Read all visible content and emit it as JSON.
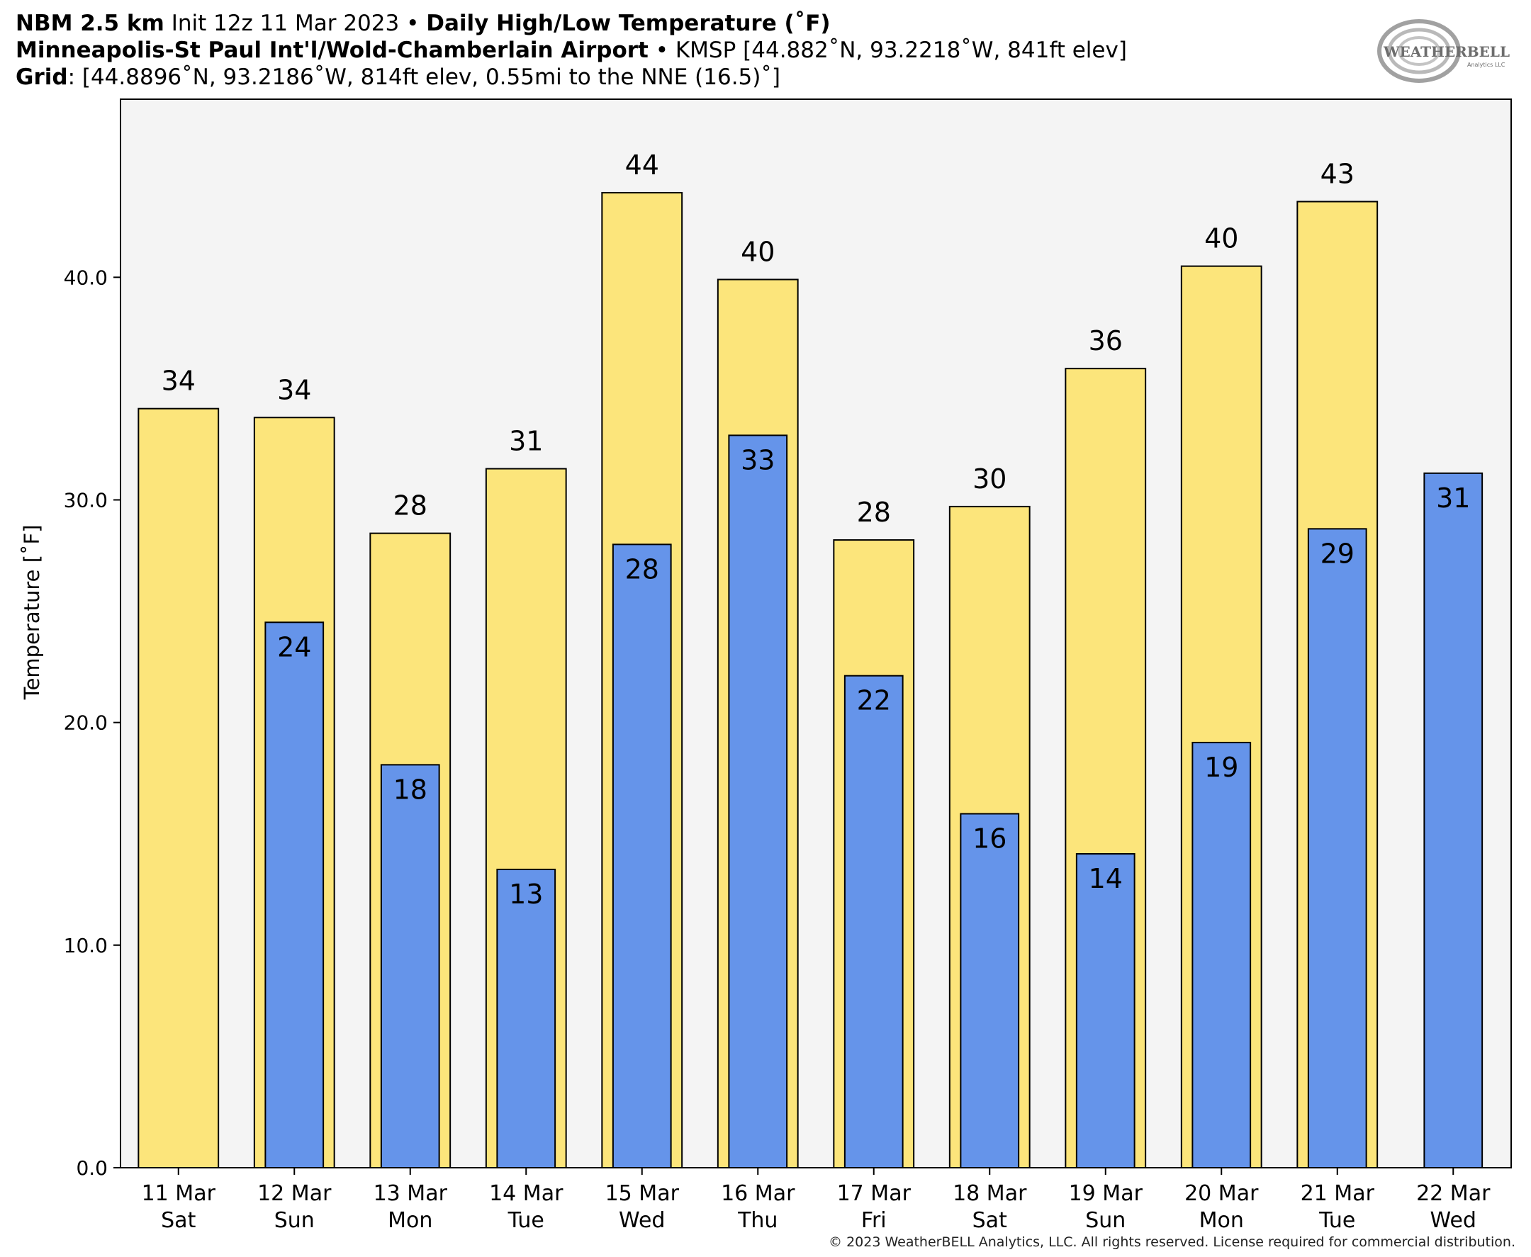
{
  "header": {
    "line1": {
      "model": "NBM 2.5 km",
      "init": " Init 12z 11 Mar 2023 • ",
      "product": "Daily High/Low Temperature (˚F)"
    },
    "line2": {
      "station": "Minneapolis-St Paul Int'l/Wold-Chamberlain Airport",
      "details": " • KMSP [44.882˚N, 93.2218˚W, 841ft elev]"
    },
    "line3": {
      "label": "Grid",
      "details": ": [44.8896˚N, 93.2186˚W, 814ft elev, 0.55mi to the NNE (16.5)˚]"
    }
  },
  "logo": {
    "text": "WEATHERBELL",
    "subtext": "Analytics LLC"
  },
  "copyright": "© 2023 WeatherBELL Analytics, LLC. All rights reserved. License required for commercial distribution.",
  "colors": {
    "high": "#fce57b",
    "low": "#6594ea",
    "plot_bg": "#f4f4f4",
    "outline": "#000000"
  },
  "chart_data": {
    "type": "bar",
    "ylabel": "Temperature [˚F]",
    "ylim": [
      0,
      48
    ],
    "yticks": [
      0,
      10,
      20,
      30,
      40
    ],
    "ytick_labels": [
      "0.0",
      "10.0",
      "20.0",
      "30.0",
      "40.0"
    ],
    "grid": false,
    "categories": [
      {
        "date": "11 Mar",
        "day": "Sat"
      },
      {
        "date": "12 Mar",
        "day": "Sun"
      },
      {
        "date": "13 Mar",
        "day": "Mon"
      },
      {
        "date": "14 Mar",
        "day": "Tue"
      },
      {
        "date": "15 Mar",
        "day": "Wed"
      },
      {
        "date": "16 Mar",
        "day": "Thu"
      },
      {
        "date": "17 Mar",
        "day": "Fri"
      },
      {
        "date": "18 Mar",
        "day": "Sat"
      },
      {
        "date": "19 Mar",
        "day": "Sun"
      },
      {
        "date": "20 Mar",
        "day": "Mon"
      },
      {
        "date": "21 Mar",
        "day": "Tue"
      },
      {
        "date": "22 Mar",
        "day": "Wed"
      }
    ],
    "series": [
      {
        "key": "high",
        "values": [
          34.1,
          33.7,
          28.5,
          31.4,
          43.8,
          39.9,
          28.2,
          29.7,
          35.9,
          40.5,
          43.4,
          null
        ],
        "labels": [
          "34",
          "34",
          "28",
          "31",
          "44",
          "40",
          "28",
          "30",
          "36",
          "40",
          "43",
          ""
        ]
      },
      {
        "key": "low",
        "values": [
          null,
          24.5,
          18.1,
          13.4,
          28.0,
          32.9,
          22.1,
          15.9,
          14.1,
          19.1,
          28.7,
          31.2
        ],
        "labels": [
          "",
          "24",
          "18",
          "13",
          "28",
          "33",
          "22",
          "16",
          "14",
          "19",
          "29",
          "31"
        ]
      }
    ]
  }
}
